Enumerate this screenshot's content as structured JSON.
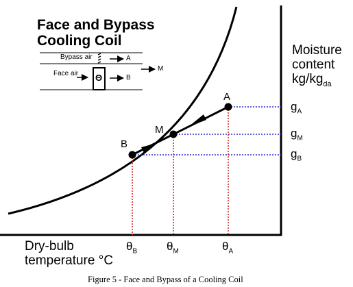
{
  "title_line1": "Face and Bypass",
  "title_line2": "Cooling Coil",
  "inset": {
    "bypass_label": "Bypass air",
    "face_label": "Face air",
    "out_a": "A",
    "out_b": "B",
    "out_m": "M",
    "coil_symbol": "Θ"
  },
  "y_axis": {
    "line1": "Moisture",
    "line2": "content",
    "line3_main": "kg/kg",
    "line3_sub": "da"
  },
  "x_axis": {
    "line1": "Dry-bulb",
    "line2": "temperature °C"
  },
  "points": {
    "a": "A",
    "m": "M",
    "b": "B"
  },
  "g_labels": {
    "a_main": "g",
    "a_sub": "A",
    "m_main": "g",
    "m_sub": "M",
    "b_main": "g",
    "b_sub": "B"
  },
  "theta_labels": {
    "b_main": "θ",
    "b_sub": "B",
    "m_main": "θ",
    "m_sub": "M",
    "a_main": "θ",
    "a_sub": "A"
  },
  "caption": "Figure 5 - Face and Bypass of a Cooling Coil",
  "colors": {
    "guide_red": "#d11a1a",
    "guide_blue": "#2a2ad0",
    "ink": "#000000"
  }
}
